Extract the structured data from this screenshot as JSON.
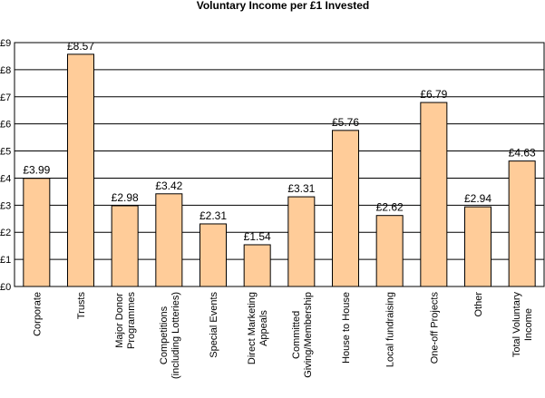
{
  "chart_data": {
    "type": "bar",
    "title": "Voluntary Income per £1 Invested",
    "xlabel": "",
    "ylabel": "",
    "ylim": [
      0,
      9
    ],
    "yticks": [
      "£0",
      "£1",
      "£2",
      "£3",
      "£4",
      "£5",
      "£6",
      "£7",
      "£8",
      "£9"
    ],
    "grid": true,
    "legend": "none",
    "categories": [
      [
        "Corporate"
      ],
      [
        "Trusts"
      ],
      [
        "Major Donor",
        "Programmes"
      ],
      [
        "Competitions",
        "(including Lotteries)"
      ],
      [
        "Special Events"
      ],
      [
        "Direct Marketing",
        "Appeals"
      ],
      [
        "Committed",
        "Giving/Membership"
      ],
      [
        "House to House"
      ],
      [
        "Local fundraising"
      ],
      [
        "One-off Projects"
      ],
      [
        "Other"
      ],
      [
        "Total Voluntary",
        "Income"
      ]
    ],
    "values": [
      3.99,
      8.57,
      2.98,
      3.42,
      2.31,
      1.54,
      3.31,
      5.76,
      2.62,
      6.79,
      2.94,
      4.63
    ],
    "data_labels": [
      "£3.99",
      "£8.57",
      "£2.98",
      "£3.42",
      "£2.31",
      "£1.54",
      "£3.31",
      "£5.76",
      "£2.62",
      "£6.79",
      "£2.94",
      "£4.63"
    ],
    "colors": {
      "bar_fill": "#FFCC99",
      "bar_stroke": "#000000",
      "grid": "#000000"
    }
  }
}
